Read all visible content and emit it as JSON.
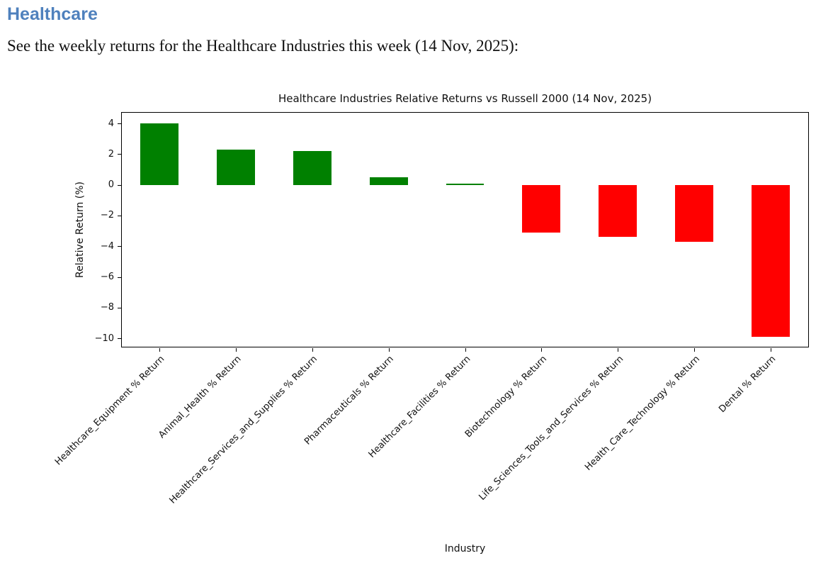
{
  "page": {
    "heading": "Healthcare",
    "intro": "See the weekly returns for the Healthcare Industries this week (14 Nov, 2025):"
  },
  "colors": {
    "heading_accent": "#4f81bd",
    "positive_bar": "#008000",
    "negative_bar": "#ff0000",
    "axis": "#000000",
    "text": "#111111"
  },
  "chart_data": {
    "type": "bar",
    "title": "Healthcare Industries Relative Returns vs Russell 2000 (14 Nov, 2025)",
    "xlabel": "Industry",
    "ylabel": "Relative Return (%)",
    "categories": [
      "Healthcare_Equipment % Return",
      "Animal_Health % Return",
      "Healthcare_Services_and_Supplies % Return",
      "Pharmaceuticals % Return",
      "Healthcare_Facilities % Return",
      "Biotechnology % Return",
      "Life_Sciences_Tools_and_Services % Return",
      "Health_Care_Technology % Return",
      "Dental % Return"
    ],
    "values": [
      4.0,
      2.3,
      2.2,
      0.5,
      0.1,
      -3.1,
      -3.4,
      -3.7,
      -9.9
    ],
    "yticks": [
      4,
      2,
      0,
      -2,
      -4,
      -6,
      -8,
      -10
    ],
    "ylim": [
      -10.6,
      4.75
    ],
    "bar_width_frac": 0.5,
    "grid": false,
    "legend": "none",
    "positive_color": "#008000",
    "negative_color": "#ff0000"
  }
}
